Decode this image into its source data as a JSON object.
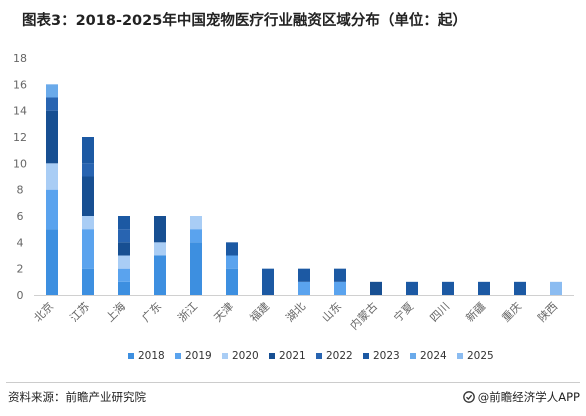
{
  "title": "图表3：2018-2025年中国宠物医疗行业融资区域分布（单位：起）",
  "footer": {
    "source": "资料来源：前瞻产业研究院",
    "brand": "@前瞻经济学人APP"
  },
  "colors": {
    "2018": "#3d8fe0",
    "2019": "#5aa3ee",
    "2020": "#a9cdf5",
    "2021": "#174f92",
    "2022": "#2864b1",
    "2023": "#1c59a3",
    "2024": "#6aaaea",
    "2025": "#8bbcf1"
  },
  "chart_data": {
    "type": "bar",
    "stacked": true,
    "categories": [
      "北京",
      "江苏",
      "上海",
      "广东",
      "浙江",
      "天津",
      "福建",
      "湖北",
      "山东",
      "内蒙古",
      "宁夏",
      "四川",
      "新疆",
      "重庆",
      "陕西"
    ],
    "series": [
      {
        "name": "2018",
        "values": [
          5,
          2,
          1,
          3,
          4,
          2,
          0,
          0,
          0,
          0,
          0,
          0,
          0,
          0,
          0
        ]
      },
      {
        "name": "2019",
        "values": [
          3,
          3,
          1,
          0,
          1,
          1,
          0,
          1,
          1,
          0,
          0,
          0,
          0,
          0,
          0
        ]
      },
      {
        "name": "2020",
        "values": [
          2,
          1,
          1,
          1,
          1,
          0,
          0,
          0,
          0,
          0,
          0,
          0,
          0,
          0,
          0
        ]
      },
      {
        "name": "2021",
        "values": [
          4,
          3,
          1,
          2,
          0,
          0,
          0,
          0,
          0,
          1,
          0,
          0,
          0,
          0,
          0
        ]
      },
      {
        "name": "2022",
        "values": [
          1,
          1,
          1,
          0,
          0,
          0,
          0,
          0,
          0,
          0,
          0,
          0,
          0,
          0,
          0
        ]
      },
      {
        "name": "2023",
        "values": [
          0,
          2,
          1,
          0,
          0,
          1,
          2,
          1,
          1,
          0,
          1,
          1,
          1,
          1,
          0
        ]
      },
      {
        "name": "2024",
        "values": [
          1,
          0,
          0,
          0,
          0,
          0,
          0,
          0,
          0,
          0,
          0,
          0,
          0,
          0,
          0
        ]
      },
      {
        "name": "2025",
        "values": [
          0,
          0,
          0,
          0,
          0,
          0,
          0,
          0,
          0,
          0,
          0,
          0,
          0,
          0,
          1
        ]
      }
    ],
    "ylim": [
      0,
      18
    ],
    "yticks": [
      0,
      2,
      4,
      6,
      8,
      10,
      12,
      14,
      16,
      18
    ],
    "grid": false,
    "legend_position": "bottom"
  }
}
